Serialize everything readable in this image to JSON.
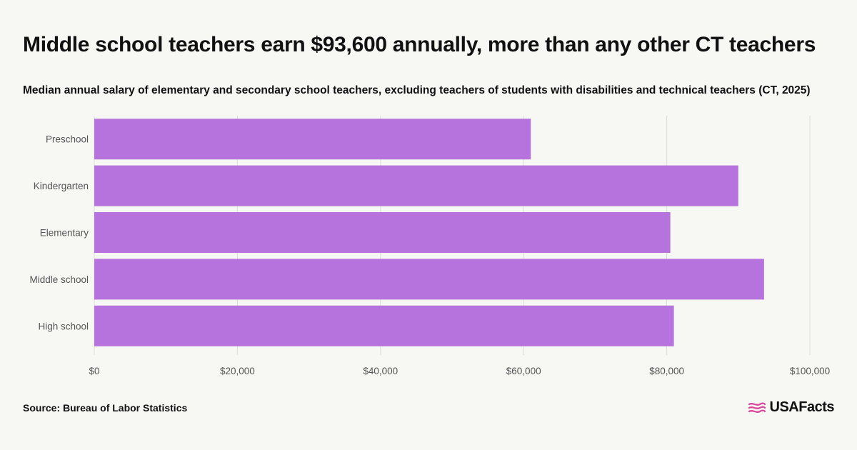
{
  "header": {
    "title": "Middle school teachers earn $93,600 annually, more than any other CT teachers",
    "subtitle": "Median annual salary of elementary and secondary school teachers, excluding teachers of students with disabilities and technical teachers (CT, 2025)"
  },
  "footer": {
    "source": "Source: Bureau of Labor Statistics",
    "logo_text": "USAFacts"
  },
  "colors": {
    "bar": "#b673de",
    "grid": "#dcdcd8",
    "tick_text": "#555555",
    "logo_accent": "#d9479b"
  },
  "chart_data": {
    "type": "bar",
    "orientation": "horizontal",
    "title": "Middle school teachers earn $93,600 annually, more than any other CT teachers",
    "subtitle": "Median annual salary of elementary and secondary school teachers, excluding teachers of students with disabilities and technical teachers (CT, 2025)",
    "categories": [
      "Preschool",
      "Kindergarten",
      "Elementary",
      "Middle school",
      "High school"
    ],
    "values": [
      61000,
      90000,
      80500,
      93600,
      81000
    ],
    "xlim": [
      0,
      100000
    ],
    "x_ticks": [
      0,
      20000,
      40000,
      60000,
      80000,
      100000
    ],
    "x_tick_labels": [
      "$0",
      "$20,000",
      "$40,000",
      "$60,000",
      "$80,000",
      "$100,000"
    ],
    "xlabel": "",
    "ylabel": "",
    "grid": true,
    "legend": "none"
  }
}
